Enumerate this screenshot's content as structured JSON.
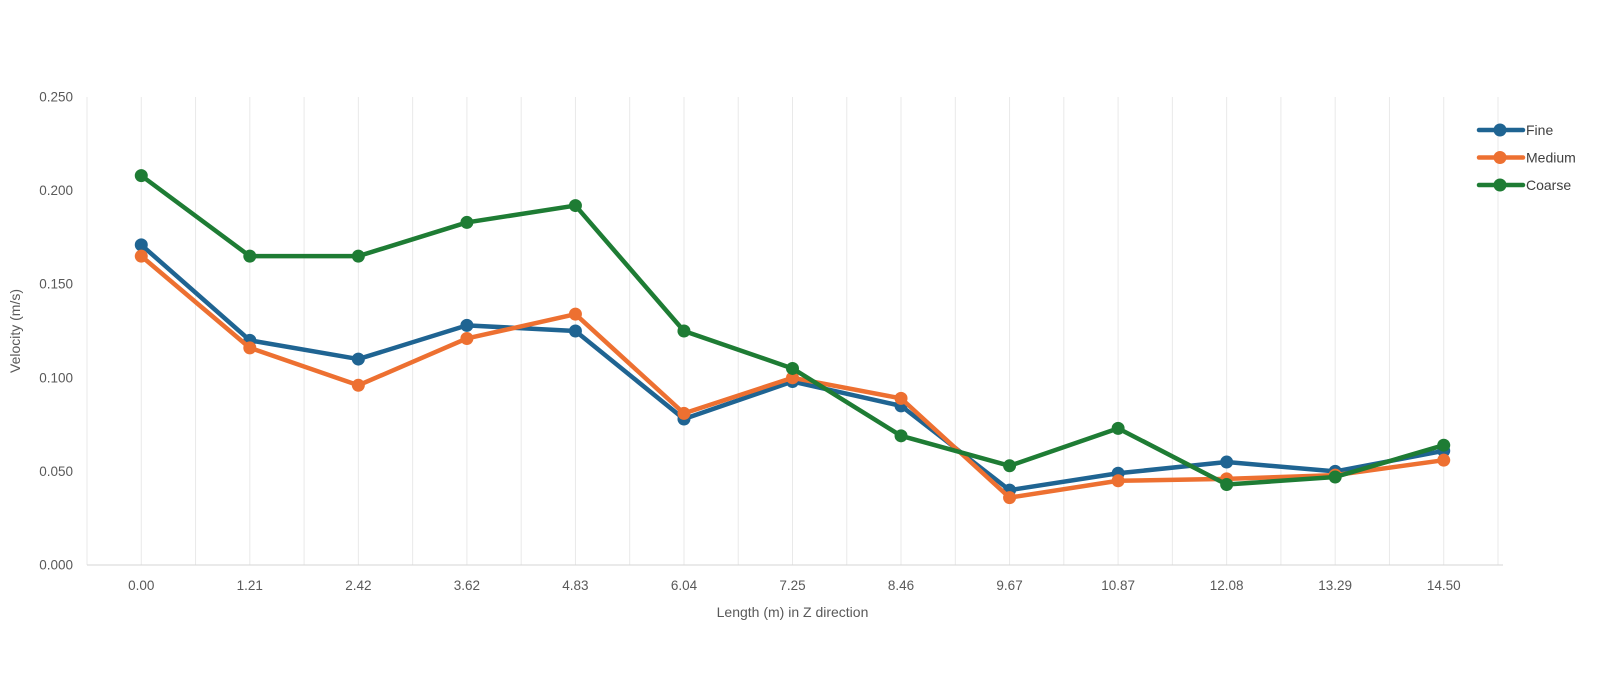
{
  "chart_data": {
    "type": "line",
    "title": "",
    "xlabel": "Length (m) in Z direction",
    "ylabel": "Velocity (m/s)",
    "categories": [
      "0.00",
      "1.21",
      "2.42",
      "3.62",
      "4.83",
      "6.04",
      "7.25",
      "8.46",
      "9.67",
      "10.87",
      "12.08",
      "13.29",
      "14.50"
    ],
    "y_ticks": [
      {
        "label": "0.000",
        "value": 0.0
      },
      {
        "label": "0.050",
        "value": 0.05
      },
      {
        "label": "0.100",
        "value": 0.1
      },
      {
        "label": "0.150",
        "value": 0.15
      },
      {
        "label": "0.200",
        "value": 0.2
      },
      {
        "label": "0.250",
        "value": 0.25
      }
    ],
    "ylim": [
      0,
      0.25
    ],
    "grid": "vertical-half-interval",
    "legend_position": "top-right",
    "series": [
      {
        "name": "Fine",
        "color": "#1f6492",
        "values": [
          0.171,
          0.12,
          0.11,
          0.128,
          0.125,
          0.078,
          0.098,
          0.085,
          0.04,
          0.049,
          0.055,
          0.05,
          0.061
        ]
      },
      {
        "name": "Medium",
        "color": "#ed7031",
        "values": [
          0.165,
          0.116,
          0.096,
          0.121,
          0.134,
          0.081,
          0.1,
          0.089,
          0.036,
          0.045,
          0.046,
          0.048,
          0.056
        ]
      },
      {
        "name": "Coarse",
        "color": "#1e7c34",
        "values": [
          0.208,
          0.165,
          0.165,
          0.183,
          0.192,
          0.125,
          0.105,
          0.069,
          0.053,
          0.073,
          0.043,
          0.047,
          0.064
        ]
      }
    ],
    "style": {
      "grid_color": "#e9e9e9",
      "axis_color": "#d6d6d6",
      "text_color": "#595959",
      "background": "#ffffff"
    }
  }
}
